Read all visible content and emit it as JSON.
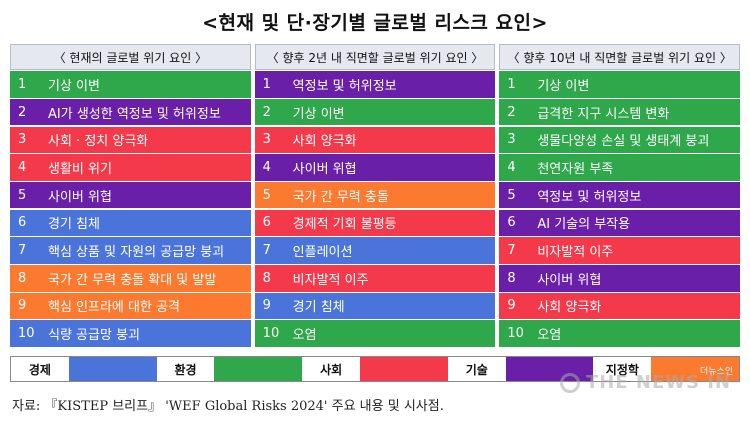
{
  "title": "<현재 및 단·장기별 글로벌 리스크 요인>",
  "columns": [
    {
      "header": "〈 현재의 글로벌 위기 요인 〉",
      "rows": [
        {
          "num": "1",
          "text": "기상 이변",
          "category": "environment"
        },
        {
          "num": "2",
          "text": "AI가 생성한 역정보 및 허위정보",
          "category": "technology"
        },
        {
          "num": "3",
          "text": "사회 · 정치 양극화",
          "category": "society"
        },
        {
          "num": "4",
          "text": "생활비 위기",
          "category": "society"
        },
        {
          "num": "5",
          "text": "사이버 위협",
          "category": "technology"
        },
        {
          "num": "6",
          "text": "경기 침체",
          "category": "economy"
        },
        {
          "num": "7",
          "text": "핵심 상품 및 자원의 공급망 붕괴",
          "category": "economy"
        },
        {
          "num": "8",
          "text": "국가 간 무력 충돌 확대 및 발발",
          "category": "geopolitics"
        },
        {
          "num": "9",
          "text": "핵심 인프라에 대한 공격",
          "category": "geopolitics"
        },
        {
          "num": "10",
          "text": "식량 공급망 붕괴",
          "category": "economy"
        }
      ]
    },
    {
      "header": "〈 향후 2년 내 직면할 글로벌 위기 요인 〉",
      "rows": [
        {
          "num": "1",
          "text": "역정보 및 허위정보",
          "category": "technology"
        },
        {
          "num": "2",
          "text": "기상 이변",
          "category": "environment"
        },
        {
          "num": "3",
          "text": "사회 양극화",
          "category": "society"
        },
        {
          "num": "4",
          "text": "사이버 위협",
          "category": "technology"
        },
        {
          "num": "5",
          "text": "국가 간 무력 충돌",
          "category": "geopolitics"
        },
        {
          "num": "6",
          "text": "경제적 기회 불평등",
          "category": "society"
        },
        {
          "num": "7",
          "text": "인플레이션",
          "category": "economy"
        },
        {
          "num": "8",
          "text": "비자발적 이주",
          "category": "society"
        },
        {
          "num": "9",
          "text": "경기 침체",
          "category": "economy"
        },
        {
          "num": "10",
          "text": "오염",
          "category": "environment"
        }
      ]
    },
    {
      "header": "〈 향후 10년 내 직면할 글로벌 위기 요인 〉",
      "rows": [
        {
          "num": "1",
          "text": "기상 이변",
          "category": "environment"
        },
        {
          "num": "2",
          "text": "급격한 지구 시스템 변화",
          "category": "environment"
        },
        {
          "num": "3",
          "text": "생물다양성 손실 및 생태계 붕괴",
          "category": "environment"
        },
        {
          "num": "4",
          "text": "천연자원 부족",
          "category": "environment"
        },
        {
          "num": "5",
          "text": "역정보 및 허위정보",
          "category": "technology"
        },
        {
          "num": "6",
          "text": "AI 기술의 부작용",
          "category": "technology"
        },
        {
          "num": "7",
          "text": "비자발적 이주",
          "category": "society"
        },
        {
          "num": "8",
          "text": "사이버 위협",
          "category": "technology"
        },
        {
          "num": "9",
          "text": "사회 양극화",
          "category": "society"
        },
        {
          "num": "10",
          "text": "오염",
          "category": "environment"
        }
      ]
    }
  ],
  "legend": [
    {
      "label": "경제",
      "key": "economy"
    },
    {
      "label": "환경",
      "key": "environment"
    },
    {
      "label": "사회",
      "key": "society"
    },
    {
      "label": "기술",
      "key": "technology"
    },
    {
      "label": "지정학",
      "key": "geopolitics"
    }
  ],
  "colors": {
    "economy": "#4a74d9",
    "environment": "#2ea84a",
    "society": "#f43a4a",
    "technology": "#6a1fa8",
    "geopolitics": "#fb7a30"
  },
  "source": "자료: 『KISTEP 브리프』 'WEF Global Risks 2024' 주요 내용 및 시사점.",
  "watermark": "THE NEWS IN",
  "watermark_small": "더뉴스인"
}
